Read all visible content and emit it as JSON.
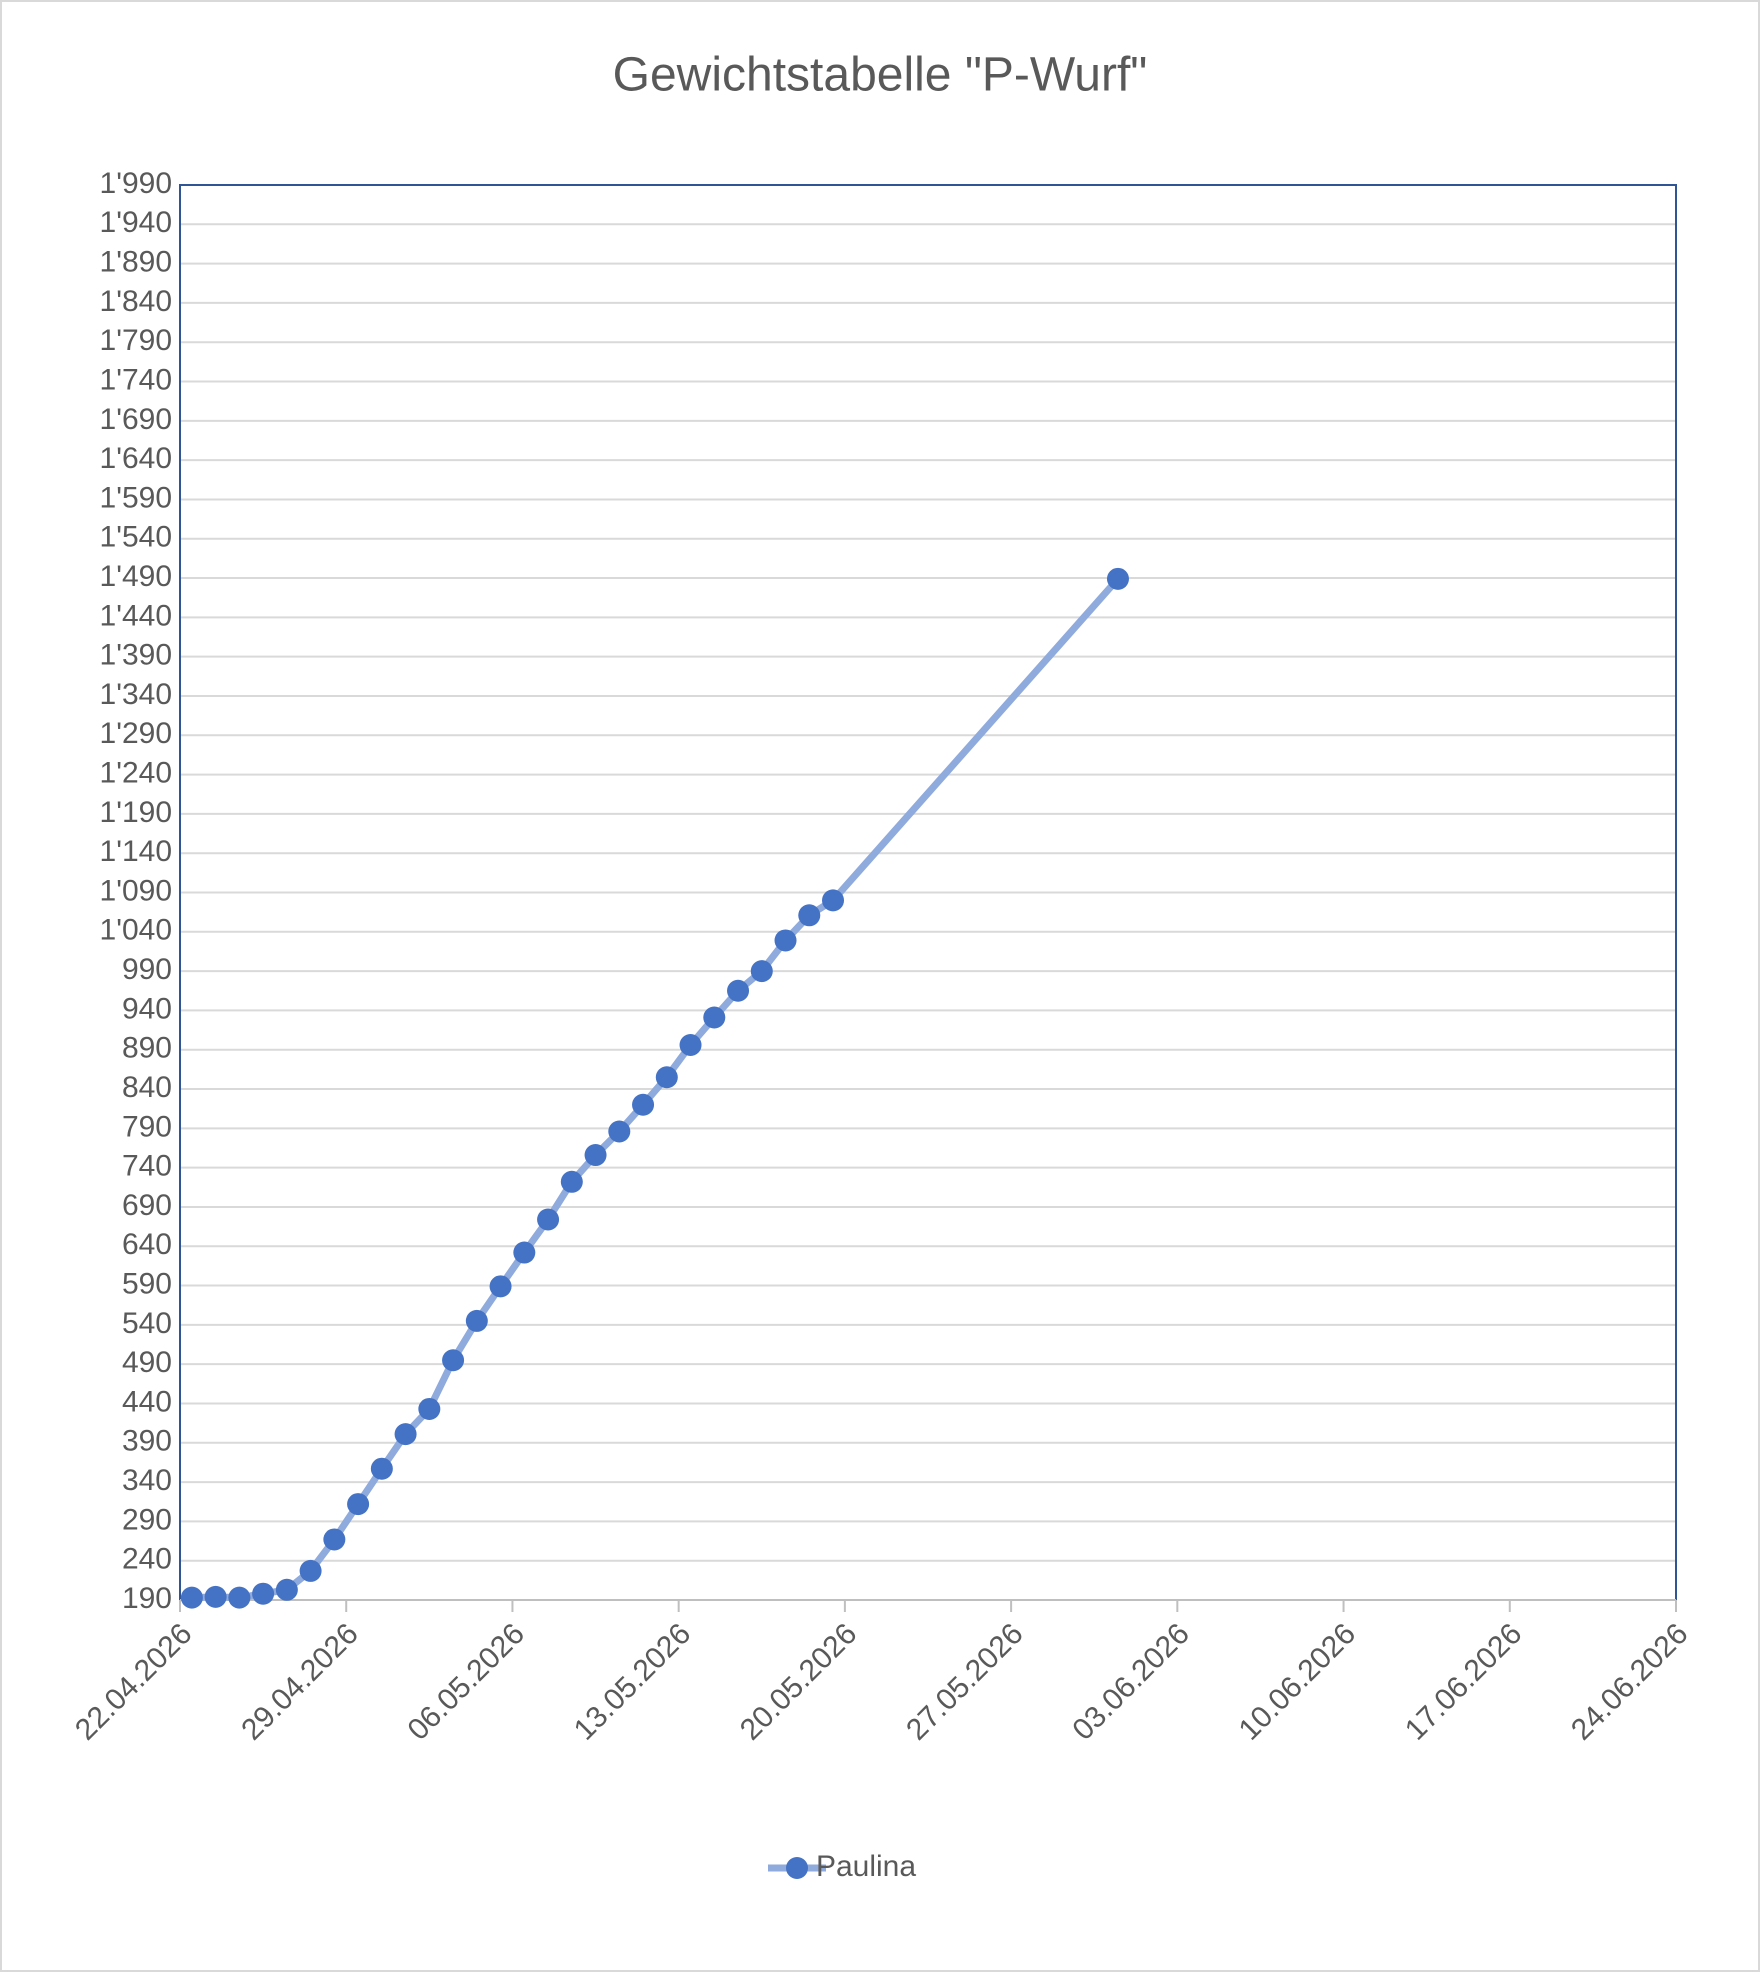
{
  "chart_data": {
    "type": "line",
    "title": "Gewichtstabelle \"P-Wurf\"",
    "x": [
      "22.04.2026",
      "23.04.2026",
      "24.04.2026",
      "25.04.2026",
      "26.04.2026",
      "27.04.2026",
      "28.04.2026",
      "29.04.2026",
      "30.04.2026",
      "01.05.2026",
      "02.05.2026",
      "03.05.2026",
      "04.05.2026",
      "05.05.2026",
      "06.05.2026",
      "07.05.2026",
      "08.05.2026",
      "09.05.2026",
      "10.05.2026",
      "11.05.2026",
      "12.05.2026",
      "13.05.2026",
      "14.05.2026",
      "15.05.2026",
      "16.05.2026",
      "17.05.2026",
      "18.05.2026",
      "19.05.2026",
      "31.05.2026"
    ],
    "series": [
      {
        "name": "Paulina",
        "color": "#4472c4",
        "line_color": "#8faadc",
        "values": [
          193,
          194,
          193,
          198,
          203,
          227,
          267,
          312,
          357,
          401,
          433,
          495,
          545,
          589,
          632,
          674,
          722,
          756,
          786,
          820,
          855,
          896,
          931,
          965,
          990,
          1029,
          1061,
          1080,
          1489
        ]
      }
    ],
    "xlim": [
      "22.04.2026",
      "24.06.2026"
    ],
    "xticks": [
      "22.04.2026",
      "29.04.2026",
      "06.05.2026",
      "13.05.2026",
      "20.05.2026",
      "27.05.2026",
      "03.06.2026",
      "10.06.2026",
      "17.06.2026",
      "24.06.2026"
    ],
    "ylim": [
      190,
      1990
    ],
    "yticks": [
      190,
      240,
      290,
      340,
      390,
      440,
      490,
      540,
      590,
      640,
      690,
      740,
      790,
      840,
      890,
      940,
      990,
      {
        "value": 1040,
        "label": "1'040"
      },
      {
        "value": 1090,
        "label": "1'090"
      },
      {
        "value": 1140,
        "label": "1'140"
      },
      {
        "value": 1190,
        "label": "1'190"
      },
      {
        "value": 1240,
        "label": "1'240"
      },
      {
        "value": 1290,
        "label": "1'290"
      },
      {
        "value": 1340,
        "label": "1'340"
      },
      {
        "value": 1390,
        "label": "1'390"
      },
      {
        "value": 1440,
        "label": "1'440"
      },
      {
        "value": 1490,
        "label": "1'490"
      },
      {
        "value": 1540,
        "label": "1'540"
      },
      {
        "value": 1590,
        "label": "1'590"
      },
      {
        "value": 1640,
        "label": "1'640"
      },
      {
        "value": 1690,
        "label": "1'690"
      },
      {
        "value": 1740,
        "label": "1'740"
      },
      {
        "value": 1790,
        "label": "1'790"
      },
      {
        "value": 1840,
        "label": "1'840"
      },
      {
        "value": 1890,
        "label": "1'890"
      },
      {
        "value": 1940,
        "label": "1'940"
      },
      {
        "value": 1990,
        "label": "1'990"
      }
    ],
    "grid": true,
    "legend": "bottom"
  }
}
